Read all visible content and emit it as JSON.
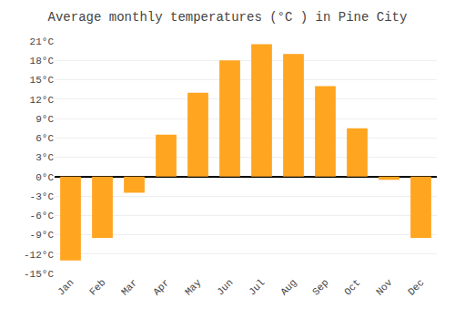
{
  "chart_data": {
    "type": "bar",
    "title": "Average monthly temperatures (°C ) in Pine City",
    "categories": [
      "Jan",
      "Feb",
      "Mar",
      "Apr",
      "May",
      "Jun",
      "Jul",
      "Aug",
      "Sep",
      "Oct",
      "Nov",
      "Dec"
    ],
    "values": [
      -13,
      -9.5,
      -2.5,
      6.5,
      13,
      18,
      20.5,
      19,
      14,
      7.5,
      -0.5,
      -9.5
    ],
    "color": "#FFA520",
    "ylim": [
      -15,
      21
    ],
    "yticks": [
      {
        "value": -15,
        "label": "-15°C"
      },
      {
        "value": -12,
        "label": "-12°C"
      },
      {
        "value": -9,
        "label": "-9°C"
      },
      {
        "value": -6,
        "label": "-6°C"
      },
      {
        "value": -3,
        "label": "-3°C"
      },
      {
        "value": 0,
        "label": "0°C"
      },
      {
        "value": 3,
        "label": "3°C"
      },
      {
        "value": 6,
        "label": "6°C"
      },
      {
        "value": 9,
        "label": "9°C"
      },
      {
        "value": 12,
        "label": "12°C"
      },
      {
        "value": 15,
        "label": "15°C"
      },
      {
        "value": 18,
        "label": "18°C"
      },
      {
        "value": 21,
        "label": "21°C"
      }
    ],
    "grid": true
  }
}
